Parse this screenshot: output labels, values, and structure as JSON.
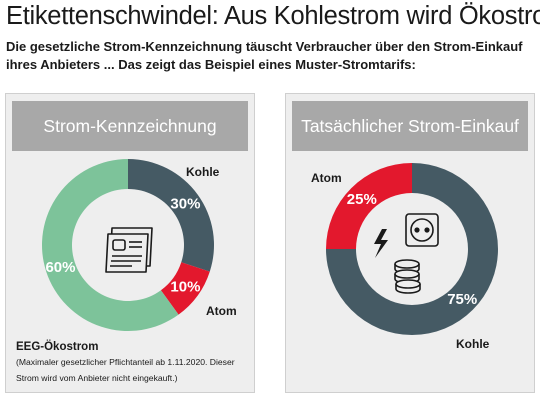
{
  "title": "Etikettenschwindel: Aus Kohlestrom wird Ökostrom",
  "subtitle": "Die gesetzliche Strom-Kennzeichnung täuscht Verbraucher über den Strom-Einkauf ihres Anbieters ... Das zeigt das Beispiel eines Muster-Stromtarifs:",
  "colors": {
    "kohle": "#455a64",
    "atom": "#e3182d",
    "oeko": "#7dc39a",
    "header": "#a8a8a8",
    "panel": "#eeeeee"
  },
  "left_panel": {
    "header": "Strom-Kennzeichnung",
    "footnote_title": "EEG-Ökostrom",
    "footnote": "(Maximaler gesetzlicher Pflichtanteil ab 1.11.2020. Dieser Strom wird vom Anbieter nicht eingekauft.)",
    "icon": "document-certificate-icon"
  },
  "right_panel": {
    "header": "Tatsächlicher Strom-Einkauf",
    "icon": "power-socket-coins-icon"
  },
  "chart_data": [
    {
      "type": "pie",
      "donut": true,
      "title": "Strom-Kennzeichnung",
      "categories": [
        "Kohle",
        "Atom",
        "EEG-Ökostrom"
      ],
      "values": [
        30,
        10,
        60
      ],
      "value_labels": [
        "30%",
        "10%",
        "60%"
      ],
      "category_labels": [
        "Kohle",
        "Atom",
        ""
      ]
    },
    {
      "type": "pie",
      "donut": true,
      "title": "Tatsächlicher Strom-Einkauf",
      "categories": [
        "Kohle",
        "Atom"
      ],
      "values": [
        75,
        25
      ],
      "value_labels": [
        "75%",
        "25%"
      ],
      "category_labels": [
        "Kohle",
        "Atom"
      ]
    }
  ]
}
